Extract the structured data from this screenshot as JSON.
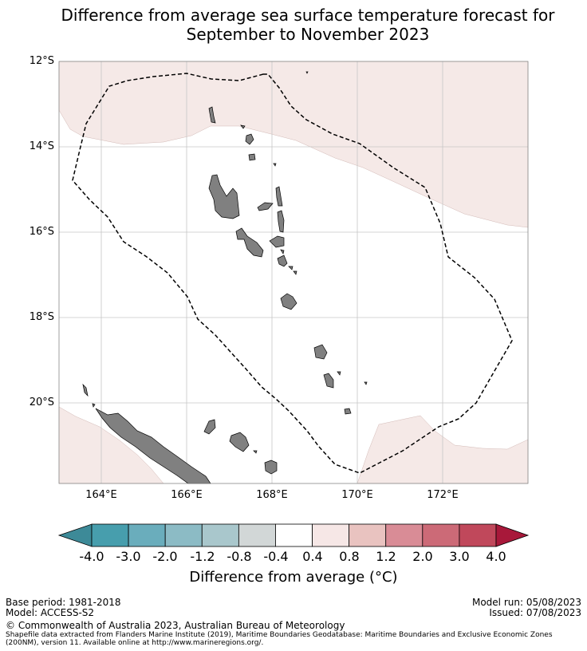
{
  "title_line1": "Difference from average sea surface temperature forecast for",
  "title_line2": "September to November 2023",
  "map": {
    "lat_labels": [
      "12°S",
      "14°S",
      "16°S",
      "18°S",
      "20°S"
    ],
    "lon_labels": [
      "164°E",
      "166°E",
      "168°E",
      "170°E",
      "172°E"
    ],
    "land_color": "#808080",
    "anomaly_fill_color": "#f5e9e7",
    "eez_boundary_style": "dashed black line"
  },
  "colorbar": {
    "labels": [
      "-4.0",
      "-3.0",
      "-2.0",
      "-1.2",
      "-0.8",
      "-0.4",
      "0.4",
      "0.8",
      "1.2",
      "2.0",
      "3.0",
      "4.0"
    ],
    "colors": [
      "#479ead",
      "#6aadbc",
      "#8cbbc5",
      "#a9c7cc",
      "#d2d7d7",
      "#ffffff",
      "#f6e7e6",
      "#e9c3c0",
      "#d98c96",
      "#cc6a77",
      "#c0485b"
    ],
    "low_extend_color": "#3d8a98",
    "high_extend_color": "#a8183a",
    "title": "Difference from average (°C)"
  },
  "footer": {
    "base_period": "Base period: 1981-2018",
    "model": "Model: ACCESS-S2",
    "model_run": "Model run: 05/08/2023",
    "issued": "Issued: 07/08/2023",
    "copyright": "© Commonwealth of Australia 2023, Australian Bureau of Meteorology",
    "source_line1": "Shapefile data extracted from Flanders Marine Institute (2019), Maritime Boundaries Geodatabase: Maritime Boundaries and Exclusive Economic Zones",
    "source_line2": "(200NM), version 11. Available online at http://www.marineregions.org/."
  }
}
